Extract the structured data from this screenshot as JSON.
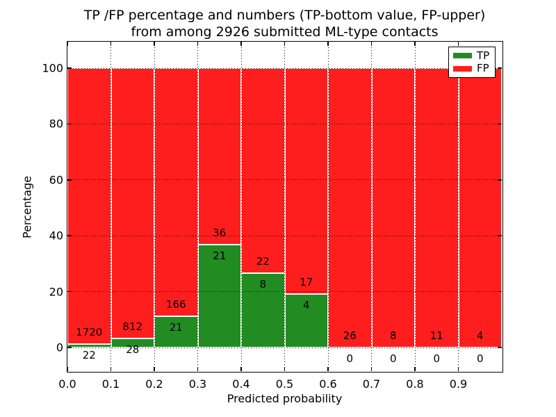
{
  "figure": {
    "title_line1": "TP /FP percentage and numbers (TP-bottom value, FP-upper)",
    "title_line2": "from among 2926 submitted ML-type contacts"
  },
  "chart_data": {
    "type": "bar",
    "stacked": true,
    "title": "TP /FP percentage and numbers (TP-bottom value, FP-upper) from among 2926 submitted ML-type contacts",
    "xlabel": "Predicted probability",
    "ylabel": "Percentage",
    "x_tick_labels": [
      "0.0",
      "0.1",
      "0.2",
      "0.3",
      "0.4",
      "0.5",
      "0.6",
      "0.7",
      "0.8",
      "0.9"
    ],
    "y_tick_labels": [
      "0",
      "20",
      "40",
      "60",
      "80",
      "100"
    ],
    "xlim": [
      0.0,
      1.0
    ],
    "ylim": [
      -8,
      110
    ],
    "grid": true,
    "total_contacts": 2926,
    "categories": [
      "0.0-0.1",
      "0.1-0.2",
      "0.2-0.3",
      "0.3-0.4",
      "0.4-0.5",
      "0.5-0.6",
      "0.6-0.7",
      "0.7-0.8",
      "0.8-0.9",
      "0.9-1.0"
    ],
    "series": [
      {
        "name": "TP",
        "role": "bottom",
        "color": "#228b22",
        "counts": [
          22,
          28,
          21,
          21,
          8,
          4,
          0,
          0,
          0,
          0
        ]
      },
      {
        "name": "FP",
        "role": "upper",
        "color": "#ff1e1e",
        "counts": [
          1720,
          812,
          166,
          36,
          22,
          17,
          26,
          8,
          11,
          4
        ]
      }
    ],
    "tp_percent": [
      1.26,
      3.33,
      11.23,
      36.84,
      26.67,
      19.05,
      0.0,
      0.0,
      0.0,
      0.0
    ],
    "legend": {
      "position": "upper right",
      "entries": [
        {
          "label": "TP",
          "color": "#228b22"
        },
        {
          "label": "FP",
          "color": "#ff1e1e"
        }
      ]
    }
  }
}
